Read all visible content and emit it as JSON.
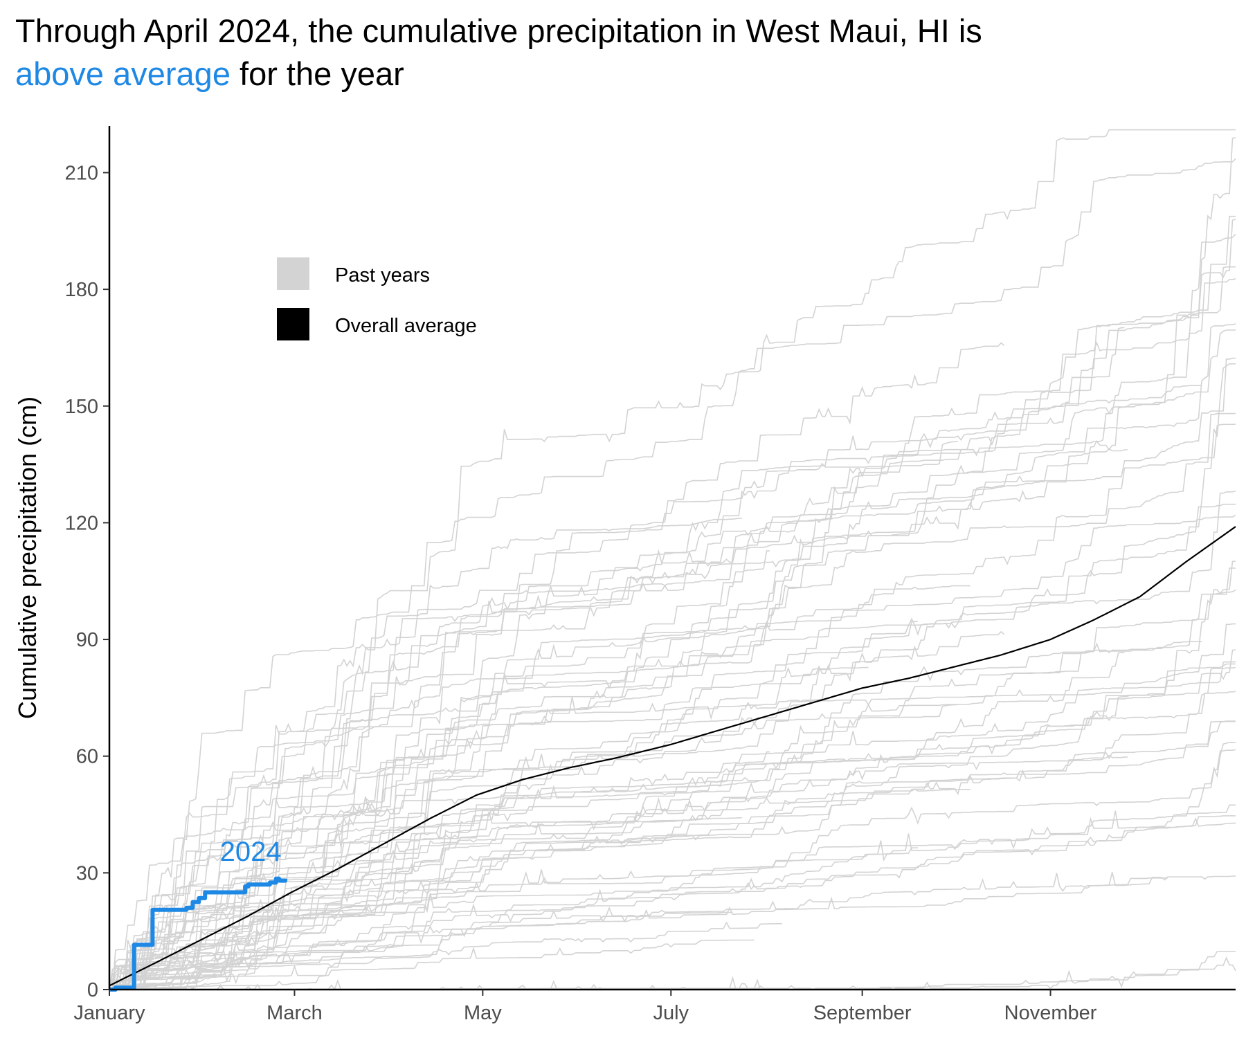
{
  "title": {
    "part1": "Through April 2024, the cumulative precipitation in West Maui, HI is",
    "highlight": "above average",
    "part2": " for the year",
    "highlight_color": "#1E88E5"
  },
  "chart_data": {
    "type": "line",
    "ylabel": "Cumulative precipitation (cm)",
    "xlabel": "",
    "x_unit": "day of year",
    "xlim": [
      1,
      366
    ],
    "ylim": [
      0,
      222
    ],
    "y_ticks": [
      0,
      30,
      60,
      90,
      120,
      150,
      180,
      210
    ],
    "x_ticks": [
      {
        "label": "January",
        "day": 1
      },
      {
        "label": "March",
        "day": 61
      },
      {
        "label": "May",
        "day": 122
      },
      {
        "label": "July",
        "day": 183
      },
      {
        "label": "September",
        "day": 245
      },
      {
        "label": "November",
        "day": 306
      }
    ],
    "grid": false,
    "legend": {
      "placement": "top-left",
      "items": [
        {
          "label": "Past years",
          "color": "#d3d3d3"
        },
        {
          "label": "Overall average",
          "color": "#000000"
        }
      ]
    },
    "series": [
      {
        "name": "Overall average",
        "color": "#000000",
        "x": [
          1,
          15,
          30,
          45,
          60,
          75,
          90,
          105,
          120,
          135,
          150,
          165,
          183,
          200,
          215,
          230,
          245,
          260,
          275,
          290,
          306,
          320,
          335,
          350,
          366
        ],
        "y": [
          1,
          6.5,
          12.5,
          18.5,
          25,
          31,
          37.5,
          44,
          50,
          54,
          57,
          59.5,
          63,
          67,
          70.5,
          74,
          77.5,
          80,
          83,
          86,
          90,
          95,
          101,
          110,
          119
        ]
      },
      {
        "name": "2024",
        "color": "#1E88E5",
        "x": [
          1,
          3,
          8,
          9,
          14,
          15,
          17,
          26,
          28,
          30,
          32,
          33,
          35,
          43,
          45,
          46,
          53,
          55,
          56,
          58
        ],
        "y": [
          0,
          0.5,
          0.5,
          11.5,
          11.5,
          20.5,
          20.5,
          21,
          22.5,
          23.5,
          25,
          25,
          25,
          25,
          26.5,
          27,
          27.5,
          28.5,
          28,
          28.5
        ]
      }
    ],
    "past_years": {
      "color": "#d3d3d3",
      "count": 60,
      "annual_total_min": 17,
      "annual_total_max": 221
    },
    "annotations": [
      {
        "text": "2024",
        "color": "#1E88E5"
      }
    ]
  }
}
